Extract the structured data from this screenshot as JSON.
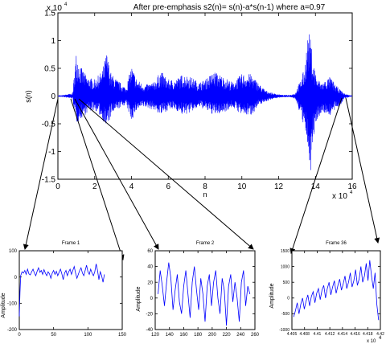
{
  "chart_data": [
    {
      "type": "line",
      "title": "After pre-emphasis s2(n)= s(n)-a*s(n-1) where a=0.97",
      "xlabel": "n",
      "ylabel": "s(n)",
      "xlim": [
        0,
        16
      ],
      "ylim": [
        -1.5,
        1.5
      ],
      "x_ticks": [
        "0",
        "2",
        "4",
        "6",
        "8",
        "10",
        "12",
        "14",
        "16"
      ],
      "y_ticks": [
        "1.5",
        "1",
        "0.5",
        "0",
        "-0.5",
        "-1",
        "-1.5"
      ],
      "x_exponent": "x 10",
      "x_exponent_power": "4",
      "y_exponent": "x 10",
      "y_exponent_power": "4",
      "color": "#0000ff",
      "envelope_x": [
        0.0,
        0.8,
        1.0,
        1.3,
        1.6,
        2.0,
        2.4,
        2.65,
        2.9,
        3.2,
        3.7,
        4.0,
        4.3,
        4.7,
        5.2,
        5.6,
        6.0,
        6.4,
        6.8,
        7.2,
        7.7,
        8.0,
        8.5,
        9.0,
        9.5,
        10.0,
        10.5,
        11.0,
        11.3,
        11.7,
        12.2,
        12.6,
        12.9,
        13.2,
        13.4,
        13.6,
        13.75,
        13.9,
        14.1,
        14.4,
        14.8,
        15.1,
        15.4,
        15.55,
        16.0
      ],
      "envelope_upper": [
        0.0,
        0.05,
        0.8,
        0.5,
        0.35,
        0.3,
        0.45,
        0.8,
        0.4,
        0.3,
        0.15,
        0.55,
        0.3,
        0.2,
        0.25,
        0.45,
        0.3,
        0.3,
        0.4,
        0.35,
        0.25,
        0.3,
        0.45,
        0.35,
        0.25,
        0.4,
        0.4,
        0.2,
        0.1,
        0.05,
        0.02,
        0.02,
        0.05,
        0.3,
        0.5,
        1.2,
        1.0,
        0.6,
        0.3,
        0.25,
        0.35,
        0.2,
        0.1,
        0.05,
        0.0
      ],
      "envelope_lower": [
        0.0,
        -0.05,
        -0.5,
        -0.4,
        -0.3,
        -0.25,
        -0.4,
        -0.6,
        -0.35,
        -0.25,
        -0.15,
        -0.45,
        -0.25,
        -0.2,
        -0.25,
        -0.35,
        -0.25,
        -0.25,
        -0.35,
        -0.3,
        -0.2,
        -0.25,
        -0.35,
        -0.3,
        -0.2,
        -0.35,
        -0.35,
        -0.15,
        -0.1,
        -0.05,
        -0.02,
        -0.02,
        -0.05,
        -0.35,
        -0.6,
        -1.0,
        -1.35,
        -0.8,
        -0.4,
        -0.3,
        -0.35,
        -0.25,
        -0.15,
        -0.05,
        0.0
      ]
    },
    {
      "type": "line",
      "title": "Frame 1",
      "ylabel": "Amplitude",
      "xlim": [
        0,
        150
      ],
      "ylim": [
        -200,
        100
      ],
      "x_ticks": [
        "0",
        "50",
        "100",
        "150"
      ],
      "y_ticks": [
        "100",
        "0",
        "-100",
        "-200"
      ],
      "color": "#0000ff",
      "x": [
        0,
        1,
        2,
        4,
        6,
        8,
        10,
        12,
        14,
        16,
        18,
        20,
        22,
        24,
        26,
        28,
        30,
        32,
        34,
        36,
        38,
        40,
        42,
        44,
        46,
        48,
        50,
        52,
        54,
        56,
        58,
        60,
        62,
        64,
        66,
        68,
        70,
        72,
        74,
        76,
        78,
        80,
        82,
        84,
        86,
        88,
        90,
        92,
        94,
        96,
        98,
        100,
        102,
        104,
        106,
        108,
        110,
        112,
        114,
        116,
        118,
        120,
        122,
        124
      ],
      "y": [
        -150,
        -60,
        5,
        20,
        15,
        25,
        10,
        30,
        12,
        8,
        20,
        30,
        15,
        5,
        22,
        35,
        18,
        25,
        10,
        28,
        15,
        5,
        20,
        12,
        -5,
        15,
        25,
        10,
        22,
        5,
        18,
        30,
        12,
        -10,
        15,
        25,
        5,
        20,
        30,
        10,
        25,
        40,
        15,
        -5,
        10,
        25,
        35,
        15,
        5,
        25,
        45,
        20,
        10,
        30,
        15,
        5,
        20,
        50,
        25,
        -10,
        20,
        5,
        -20,
        10
      ]
    },
    {
      "type": "line",
      "title": "Frame 2",
      "ylabel": "Amplitude",
      "xlim": [
        120,
        260
      ],
      "ylim": [
        -40,
        60
      ],
      "x_ticks": [
        "120",
        "140",
        "160",
        "180",
        "200",
        "220",
        "240",
        "260"
      ],
      "y_ticks": [
        "60",
        "40",
        "20",
        "0",
        "-20",
        "-40"
      ],
      "color": "#0000ff",
      "x": [
        124,
        127,
        130,
        133,
        136,
        139,
        142,
        145,
        148,
        151,
        154,
        157,
        160,
        163,
        166,
        169,
        172,
        175,
        178,
        181,
        184,
        187,
        190,
        193,
        196,
        199,
        202,
        205,
        208,
        211,
        214,
        217,
        220,
        223,
        226,
        229,
        232,
        235,
        238,
        241,
        244,
        247,
        250,
        253
      ],
      "y": [
        5,
        35,
        15,
        -10,
        20,
        45,
        25,
        -15,
        10,
        30,
        -5,
        -20,
        15,
        35,
        5,
        -25,
        20,
        40,
        10,
        -15,
        25,
        5,
        -30,
        15,
        30,
        -10,
        20,
        35,
        0,
        -20,
        25,
        10,
        -35,
        15,
        30,
        -5,
        20,
        0,
        -30,
        20,
        35,
        -10,
        15,
        5
      ]
    },
    {
      "type": "line",
      "title": "Frame 36",
      "ylabel": "Amplitude",
      "xlim": [
        4.405,
        4.42
      ],
      "ylim": [
        -1000,
        1500
      ],
      "x_ticks": [
        "4.405",
        "4.408",
        "4.41",
        "4.412",
        "4.414",
        "4.416",
        "4.418",
        "4.42"
      ],
      "y_ticks": [
        "1500",
        "1000",
        "500",
        "0",
        "-500",
        "-1000"
      ],
      "x_exponent": "x 10",
      "x_exponent_power": "4",
      "color": "#0000ff",
      "x": [
        4.4053,
        4.4056,
        4.4059,
        4.4062,
        4.4065,
        4.4068,
        4.4071,
        4.4074,
        4.4077,
        4.408,
        4.4083,
        4.4086,
        4.4089,
        4.4092,
        4.4095,
        4.4098,
        4.4101,
        4.4104,
        4.4107,
        4.411,
        4.4113,
        4.4116,
        4.4119,
        4.4122,
        4.4125,
        4.4128,
        4.4131,
        4.4134,
        4.4137,
        4.414,
        4.4143,
        4.4146,
        4.4149,
        4.4152,
        4.4155,
        4.4158,
        4.4161,
        4.4164,
        4.4167,
        4.417,
        4.4173,
        4.4176,
        4.4179,
        4.4182,
        4.4185,
        4.4188,
        4.4191,
        4.4194,
        4.4197
      ],
      "y": [
        -600,
        -400,
        -150,
        -500,
        -200,
        0,
        -350,
        -100,
        100,
        -250,
        50,
        200,
        -150,
        150,
        300,
        -50,
        250,
        400,
        0,
        300,
        500,
        100,
        350,
        550,
        150,
        400,
        600,
        250,
        450,
        700,
        300,
        500,
        800,
        350,
        550,
        900,
        400,
        600,
        1000,
        500,
        700,
        1100,
        550,
        1200,
        700,
        300,
        800,
        -200,
        -700
      ]
    }
  ]
}
